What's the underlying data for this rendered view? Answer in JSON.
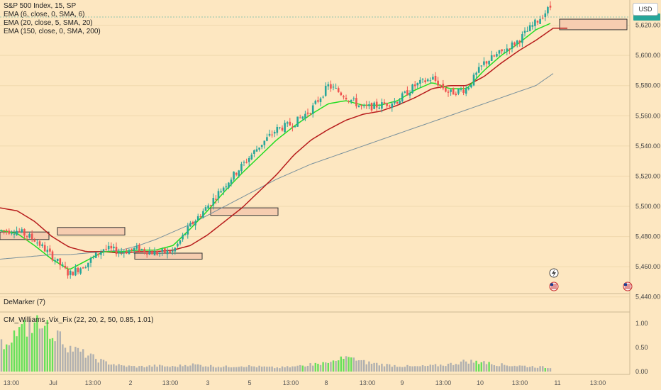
{
  "header": {
    "symbol_line": "S&P 500 Index, 15, SP",
    "ema_lines": [
      "EMA (6, close, 0, SMA, 6)",
      "EMA (20, close, 5, SMA, 20)",
      "EMA (150, close, 0, SMA, 200)"
    ],
    "currency": "USD"
  },
  "indicators": {
    "demarker_label": "DeMarker (7)",
    "vix_fix_label": "CM_Williams_Vix_Fix (22, 20, 2, 50, 0.85, 1.01)"
  },
  "colors": {
    "background": "#fde7c1",
    "candle_up": "#26a69a",
    "candle_down": "#ef5350",
    "ema_fast": "#22dd22",
    "ema_mid": "#b71c1c",
    "ema_slow": "#78909c",
    "vix_gray": "#b0b0b0",
    "vix_green": "#66e05a",
    "box_fill": "#f6cdb0",
    "box_stroke": "#333333"
  },
  "chart_data": {
    "type": "candlestick",
    "timeframe": "15",
    "price_axis": {
      "ticks": [
        "5,620.00",
        "5,600.00",
        "5,580.00",
        "5,560.00",
        "5,540.00",
        "5,520.00",
        "5,500.00",
        "5,480.00",
        "5,460.00",
        "5,440.00"
      ],
      "tick_values": [
        5620,
        5600,
        5580,
        5560,
        5540,
        5520,
        5500,
        5480,
        5460,
        5440
      ],
      "range": [
        5430,
        5632
      ]
    },
    "time_axis": {
      "ticks": [
        "13:00",
        "Jul",
        "13:00",
        "2",
        "13:00",
        "3",
        "5",
        "13:00",
        "8",
        "13:00",
        "9",
        "13:00",
        "10",
        "13:00",
        "11",
        "13:00"
      ]
    },
    "indicator_axis": {
      "ticks": [
        "1.00",
        "0.50",
        "0.00"
      ],
      "tick_values": [
        1.0,
        0.5,
        0.0
      ]
    },
    "ohlc_anchor_closes": [
      5484,
      5484,
      5478,
      5467,
      5455,
      5462,
      5472,
      5470,
      5472,
      5469,
      5470,
      5487,
      5500,
      5514,
      5527,
      5540,
      5551,
      5555,
      5564,
      5580,
      5573,
      5565,
      5567,
      5570,
      5580,
      5585,
      5575,
      5578,
      5595,
      5602,
      5610,
      5622,
      5634
    ],
    "ema_fast_anchors": [
      5484,
      5482,
      5474,
      5465,
      5458,
      5464,
      5470,
      5470,
      5471,
      5471,
      5474,
      5485,
      5497,
      5510,
      5522,
      5533,
      5544,
      5553,
      5561,
      5568,
      5570,
      5567,
      5567,
      5570,
      5577,
      5582,
      5578,
      5578,
      5590,
      5600,
      5608,
      5617,
      5622
    ],
    "ema_mid_anchors": [
      5499,
      5497,
      5490,
      5480,
      5473,
      5470,
      5470,
      5469,
      5470,
      5470,
      5471,
      5474,
      5481,
      5490,
      5499,
      5510,
      5521,
      5534,
      5544,
      5551,
      5557,
      5561,
      5563,
      5567,
      5572,
      5578,
      5580,
      5580,
      5586,
      5595,
      5603,
      5610,
      5618
    ],
    "ema_slow_anchors": [
      5465,
      5466,
      5467,
      5468,
      5468,
      5469,
      5470,
      5471,
      5474,
      5478,
      5483,
      5488,
      5494,
      5500,
      5506,
      5512,
      5518,
      5523,
      5528,
      5532,
      5536,
      5540,
      5544,
      5548,
      5552,
      5556,
      5560,
      5564,
      5568,
      5572,
      5576,
      5580,
      5588
    ],
    "vix_fix_anchors": [
      0.55,
      0.8,
      1.0,
      0.85,
      0.5,
      0.35,
      0.2,
      0.12,
      0.1,
      0.12,
      0.1,
      0.15,
      0.12,
      0.1,
      0.12,
      0.1,
      0.08,
      0.1,
      0.15,
      0.18,
      0.28,
      0.2,
      0.15,
      0.12,
      0.1,
      0.12,
      0.15,
      0.22,
      0.18,
      0.14,
      0.12,
      0.1,
      0.08
    ],
    "vix_green_anchors": [
      1,
      1,
      1,
      1,
      0,
      0,
      0,
      0,
      0,
      0,
      0,
      0,
      0,
      0,
      0,
      0,
      0,
      0,
      1,
      1,
      1,
      0,
      0,
      0,
      0,
      0,
      0,
      0,
      1,
      0,
      0,
      0,
      1
    ],
    "boxes": [
      {
        "label": "",
        "price_top": 5483,
        "price_bottom": 5478
      },
      {
        "label": "",
        "price_top": 5486,
        "price_bottom": 5481
      },
      {
        "label": "",
        "price_top": 5469,
        "price_bottom": 5465
      },
      {
        "label": "",
        "price_top": 5499,
        "price_bottom": 5494
      },
      {
        "label": "",
        "price_top": 5624,
        "price_bottom": 5617
      }
    ]
  }
}
